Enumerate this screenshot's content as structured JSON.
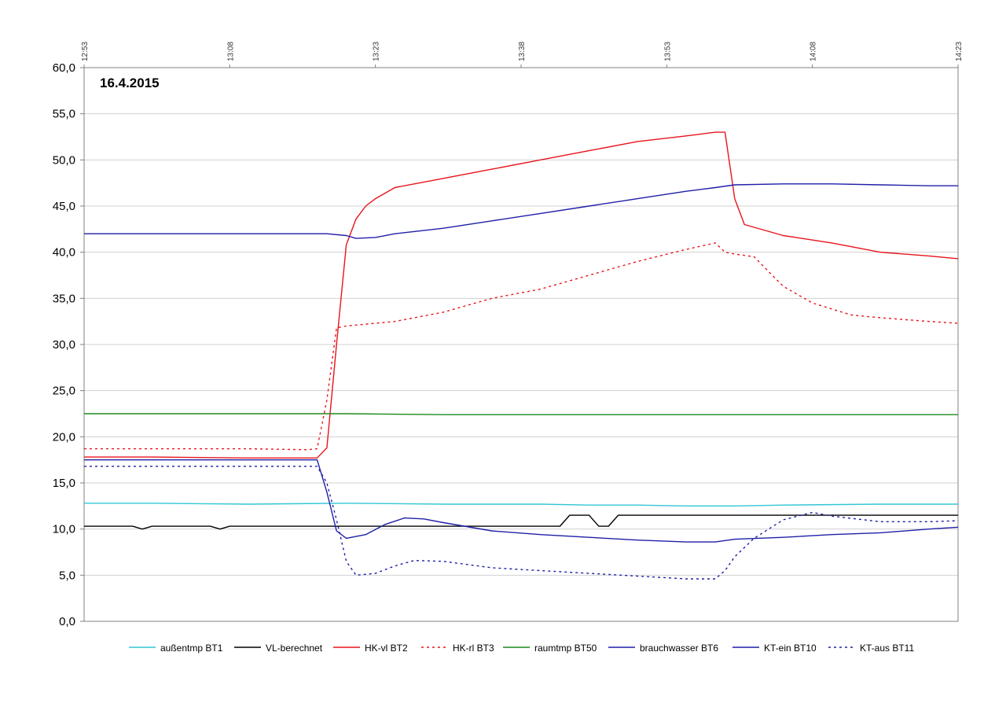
{
  "chart_data": {
    "type": "line",
    "annotation": "16.4.2015",
    "x_ticks": [
      "12:53",
      "13:08",
      "13:23",
      "13:38",
      "13:53",
      "14:08",
      "14:23"
    ],
    "x_range": [
      "12:53",
      "14:23"
    ],
    "y_ticks": [
      "0,0",
      "5,0",
      "10,0",
      "15,0",
      "20,0",
      "25,0",
      "30,0",
      "35,0",
      "40,0",
      "45,0",
      "50,0",
      "55,0",
      "60,0"
    ],
    "ylim": [
      0,
      60
    ],
    "grid": "horizontal",
    "legend_position": "bottom",
    "series": [
      {
        "name": "außentmp BT1",
        "color": "#33c6d6",
        "dash": "solid",
        "x": [
          "12:53",
          "13:00",
          "13:10",
          "13:20",
          "13:30",
          "13:40",
          "13:45",
          "13:50",
          "13:55",
          "14:00",
          "14:05",
          "14:15",
          "14:23"
        ],
        "values": [
          12.8,
          12.8,
          12.7,
          12.8,
          12.7,
          12.7,
          12.6,
          12.6,
          12.5,
          12.5,
          12.6,
          12.7,
          12.7
        ]
      },
      {
        "name": "VL-berechnet",
        "color": "#000000",
        "dash": "solid",
        "x": [
          "12:53",
          "12:58",
          "12:59",
          "13:00",
          "13:01",
          "13:06",
          "13:07",
          "13:08",
          "13:09",
          "13:42",
          "13:43",
          "13:45",
          "13:46",
          "13:47",
          "13:48",
          "14:23"
        ],
        "values": [
          10.3,
          10.3,
          10.0,
          10.3,
          10.3,
          10.3,
          10.0,
          10.3,
          10.3,
          10.3,
          11.5,
          11.5,
          10.3,
          10.3,
          11.5,
          11.5
        ]
      },
      {
        "name": "HK-vl BT2",
        "color": "#e8141b",
        "dash": "solid",
        "x": [
          "12:53",
          "13:00",
          "13:10",
          "13:17",
          "13:18",
          "13:19",
          "13:20",
          "13:21",
          "13:22",
          "13:23",
          "13:25",
          "13:30",
          "13:35",
          "13:40",
          "13:45",
          "13:50",
          "13:55",
          "13:58",
          "13:59",
          "14:00",
          "14:01",
          "14:05",
          "14:10",
          "14:15",
          "14:20",
          "14:23"
        ],
        "values": [
          17.8,
          17.8,
          17.7,
          17.7,
          18.8,
          30.0,
          40.8,
          43.6,
          45.0,
          45.8,
          47.0,
          48.0,
          49.0,
          50.0,
          51.0,
          52.0,
          52.6,
          53.0,
          53.0,
          45.8,
          43.0,
          41.8,
          41.0,
          40.0,
          39.6,
          39.3
        ]
      },
      {
        "name": "HK-rl BT3",
        "color": "#e8141b",
        "dash": "dashed",
        "x": [
          "12:53",
          "13:00",
          "13:10",
          "13:16",
          "13:17",
          "13:18",
          "13:19",
          "13:20",
          "13:25",
          "13:30",
          "13:35",
          "13:40",
          "13:45",
          "13:50",
          "13:55",
          "13:58",
          "13:59",
          "14:00",
          "14:02",
          "14:05",
          "14:08",
          "14:12",
          "14:15",
          "14:20",
          "14:23"
        ],
        "values": [
          18.7,
          18.7,
          18.7,
          18.6,
          18.7,
          24.0,
          31.8,
          32.0,
          32.5,
          33.5,
          35.0,
          36.0,
          37.5,
          39.0,
          40.3,
          41.0,
          40.0,
          39.8,
          39.5,
          36.3,
          34.5,
          33.2,
          32.9,
          32.5,
          32.3
        ]
      },
      {
        "name": "raumtmp BT50",
        "color": "#1e8a1e",
        "dash": "solid",
        "x": [
          "12:53",
          "13:00",
          "13:10",
          "13:20",
          "13:30",
          "13:40",
          "13:50",
          "14:00",
          "14:10",
          "14:23"
        ],
        "values": [
          22.5,
          22.5,
          22.5,
          22.5,
          22.4,
          22.4,
          22.4,
          22.4,
          22.4,
          22.4
        ]
      },
      {
        "name": "brauchwasser BT6",
        "color": "#1f1fa8",
        "dash": "solid",
        "x": [
          "12:53",
          "13:00",
          "13:10",
          "13:18",
          "13:20",
          "13:21",
          "13:23",
          "13:25",
          "13:30",
          "13:35",
          "13:40",
          "13:45",
          "13:50",
          "13:55",
          "13:58",
          "14:00",
          "14:05",
          "14:10",
          "14:15",
          "14:20",
          "14:23"
        ],
        "values": [
          42.0,
          42.0,
          42.0,
          42.0,
          41.8,
          41.5,
          41.6,
          42.0,
          42.6,
          43.4,
          44.2,
          45.0,
          45.8,
          46.6,
          47.0,
          47.3,
          47.4,
          47.4,
          47.3,
          47.2,
          47.2
        ]
      },
      {
        "name": "KT-ein BT10",
        "color": "#1f1fa8",
        "dash": "solid",
        "x": [
          "12:53",
          "13:00",
          "13:10",
          "13:17",
          "13:18",
          "13:19",
          "13:20",
          "13:22",
          "13:24",
          "13:26",
          "13:28",
          "13:30",
          "13:35",
          "13:40",
          "13:45",
          "13:50",
          "13:55",
          "13:58",
          "14:00",
          "14:05",
          "14:10",
          "14:15",
          "14:20",
          "14:23"
        ],
        "values": [
          17.5,
          17.5,
          17.5,
          17.5,
          14.0,
          9.8,
          9.0,
          9.4,
          10.5,
          11.2,
          11.1,
          10.7,
          9.8,
          9.4,
          9.1,
          8.8,
          8.6,
          8.6,
          8.9,
          9.1,
          9.4,
          9.6,
          10.0,
          10.2
        ]
      },
      {
        "name": "KT-aus BT11",
        "color": "#1f1fa8",
        "dash": "dashed",
        "x": [
          "12:53",
          "13:00",
          "13:10",
          "13:17",
          "13:18",
          "13:19",
          "13:20",
          "13:21",
          "13:23",
          "13:25",
          "13:27",
          "13:30",
          "13:35",
          "13:40",
          "13:45",
          "13:50",
          "13:55",
          "13:58",
          "13:59",
          "14:00",
          "14:02",
          "14:05",
          "14:08",
          "14:10",
          "14:15",
          "14:20",
          "14:23"
        ],
        "values": [
          16.8,
          16.8,
          16.8,
          16.8,
          15.0,
          11.0,
          6.5,
          5.0,
          5.2,
          6.0,
          6.6,
          6.5,
          5.8,
          5.5,
          5.2,
          4.9,
          4.6,
          4.6,
          5.5,
          7.0,
          9.0,
          11.0,
          11.8,
          11.4,
          10.8,
          10.8,
          10.9
        ]
      }
    ]
  }
}
